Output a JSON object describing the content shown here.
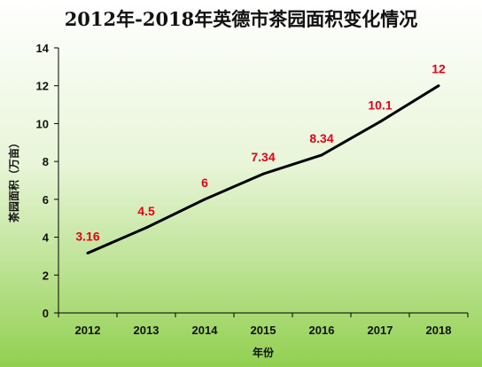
{
  "chart_data": {
    "type": "line",
    "title": "2012年-2018年英德市茶园面积变化情况",
    "xlabel": "年份",
    "ylabel": "茶园面积（万亩）",
    "categories": [
      "2012",
      "2013",
      "2014",
      "2015",
      "2016",
      "2017",
      "2018"
    ],
    "series": [
      {
        "values": [
          3.16,
          4.5,
          6,
          7.34,
          8.34,
          10.1,
          12
        ],
        "labels": [
          "3.16",
          "4.5",
          "6",
          "7.34",
          "8.34",
          "10.1",
          "12"
        ],
        "color": "#000000"
      }
    ],
    "ylim": [
      0,
      14
    ],
    "yticks": [
      "0",
      "2",
      "4",
      "6",
      "8",
      "10",
      "12",
      "14"
    ],
    "grid": false,
    "legend": "none",
    "colors": {
      "background_top": "#ffffff",
      "background_bottom": "#92d050",
      "line": "#000000",
      "data_label": "#e3001b",
      "axis": "#000000"
    }
  }
}
